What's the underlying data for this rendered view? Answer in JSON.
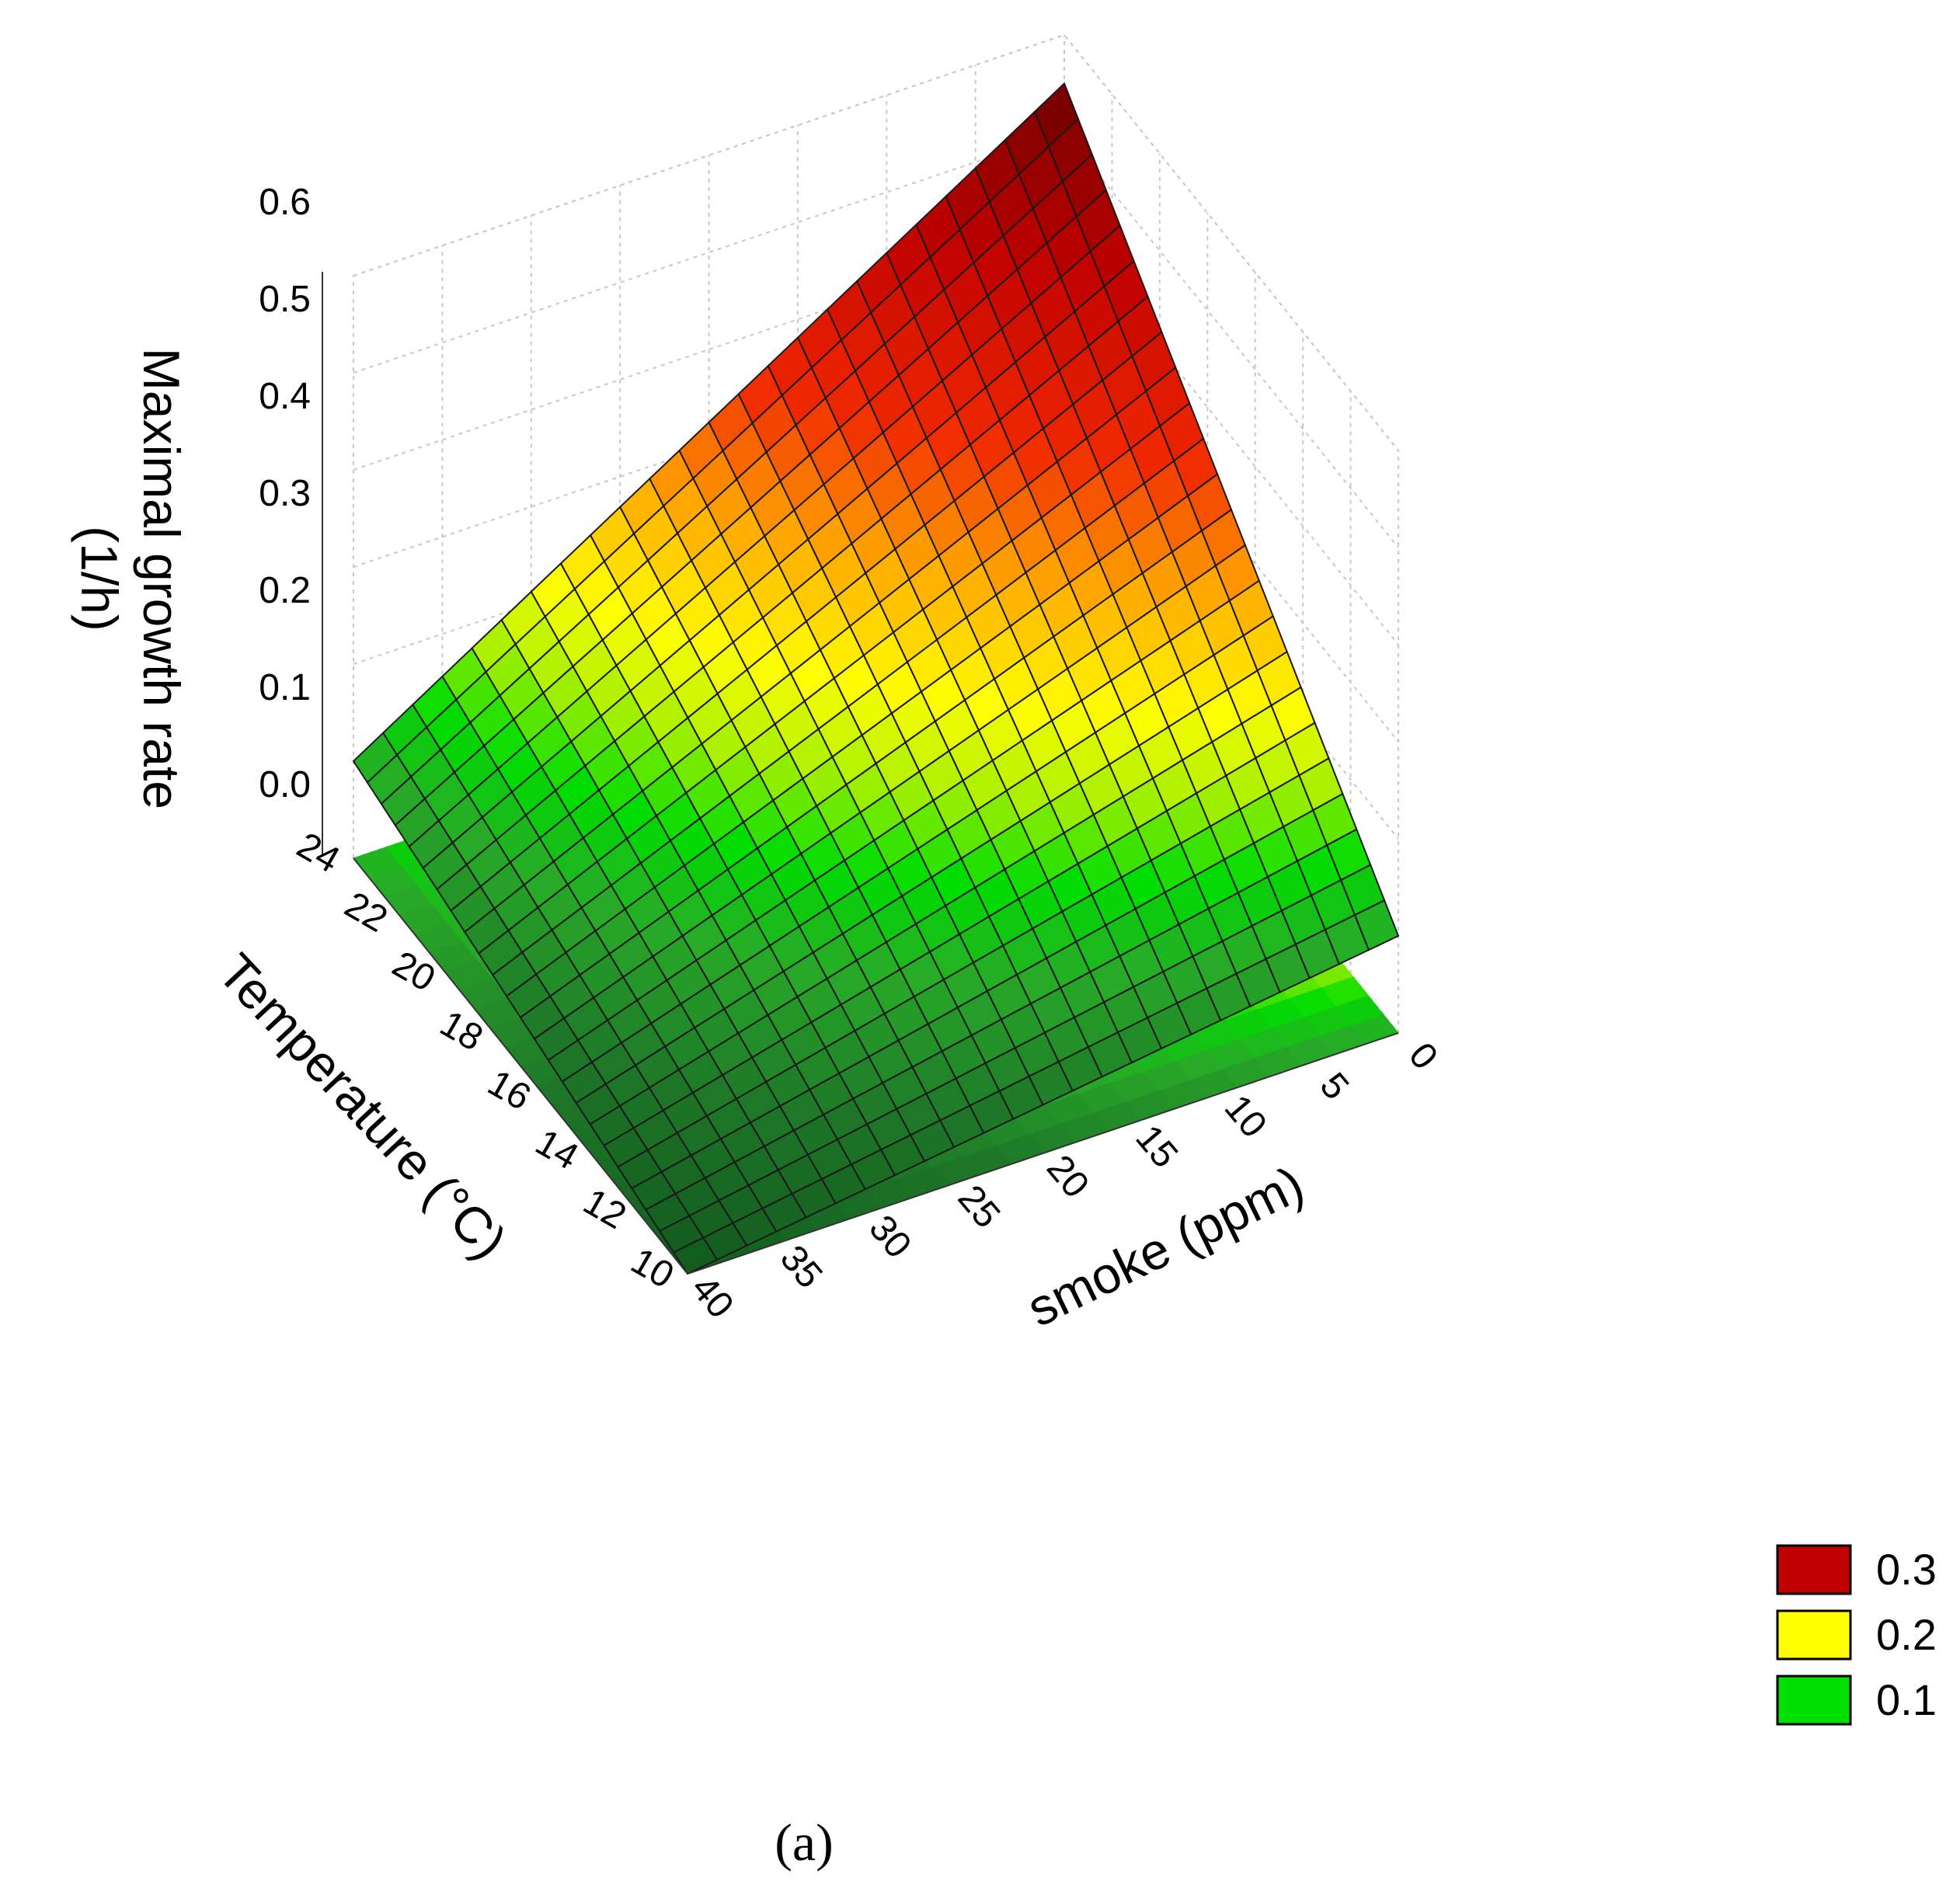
{
  "chart_data": {
    "type": "surface3d",
    "zlabel": "Maximal growth rate\n(1/h)",
    "ylabel": "Temperature (°C)",
    "xlabel": "smoke (ppm)",
    "x_ticks": [
      "0",
      "5",
      "10",
      "15",
      "20",
      "25",
      "30",
      "35",
      "40"
    ],
    "y_ticks": [
      "10",
      "12",
      "14",
      "16",
      "18",
      "20",
      "22",
      "24"
    ],
    "z_ticks": [
      "0.0",
      "0.1",
      "0.2",
      "0.3",
      "0.4",
      "0.5",
      "0.6"
    ],
    "xlim": [
      0,
      40
    ],
    "ylim": [
      10,
      24
    ],
    "zlim": [
      0,
      0.6
    ],
    "surface_corners": [
      {
        "smoke": 0,
        "temperature": 24,
        "rate": 0.55
      },
      {
        "smoke": 40,
        "temperature": 24,
        "rate": 0.1
      },
      {
        "smoke": 0,
        "temperature": 10,
        "rate": 0.1
      },
      {
        "smoke": 40,
        "temperature": 10,
        "rate": 0.0
      }
    ],
    "legend": [
      {
        "label": "0.3",
        "color": "#c00000"
      },
      {
        "label": "0.2",
        "color": "#ffff00"
      },
      {
        "label": "0.1",
        "color": "#00e000"
      }
    ],
    "legend_position": "bottom-right",
    "grid": true
  },
  "caption": "(a)"
}
